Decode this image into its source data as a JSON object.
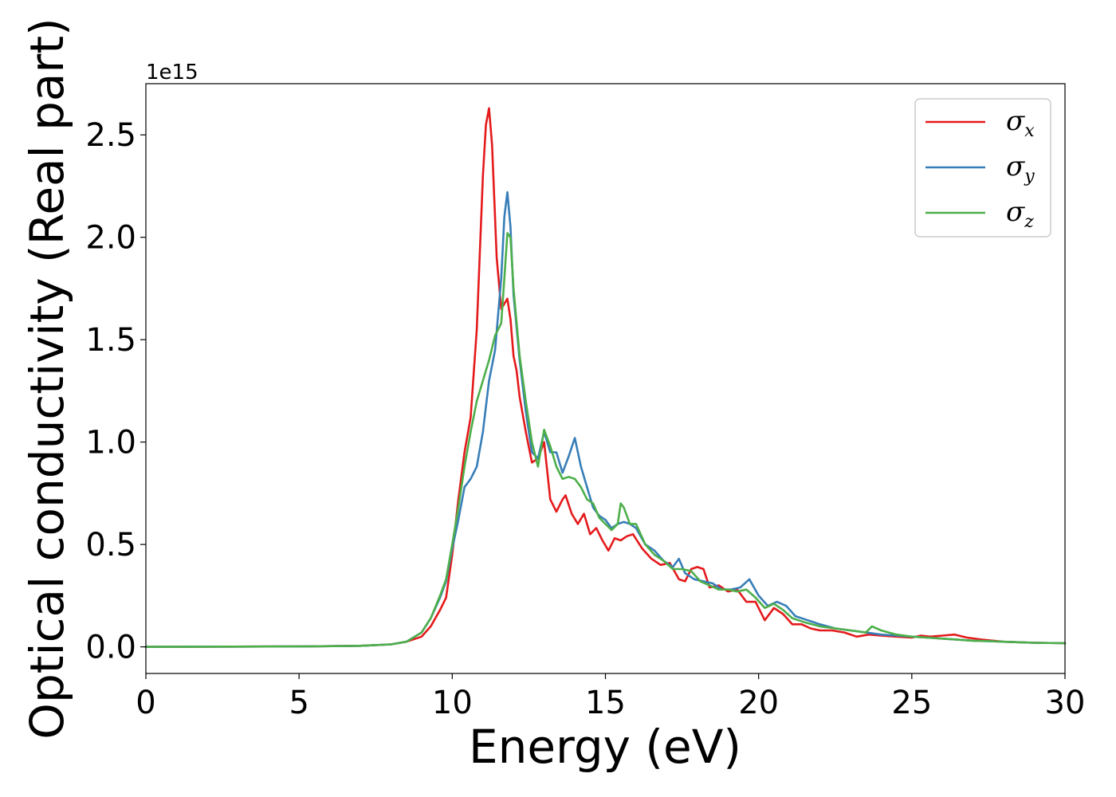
{
  "chart_data": {
    "type": "line",
    "title": "",
    "xlabel": "Energy (eV)",
    "ylabel": "Optical conductivity (Real part)",
    "y_offset_label": "1e15",
    "xlim": [
      0,
      30
    ],
    "ylim": [
      -0.13,
      2.75
    ],
    "xticks": [
      0,
      5,
      10,
      15,
      20,
      25,
      30
    ],
    "yticks": [
      0.0,
      0.5,
      1.0,
      1.5,
      2.0,
      2.5
    ],
    "ytick_labels": [
      "0.0",
      "0.5",
      "1.0",
      "1.5",
      "2.0",
      "2.5"
    ],
    "grid": false,
    "legend_position": "top-right",
    "series": [
      {
        "name": "σx",
        "legend_symbol": "σ",
        "legend_sub": "x",
        "color": "#e41a1c",
        "x": [
          0,
          5,
          7,
          8,
          8.5,
          9,
          9.3,
          9.6,
          9.8,
          10.0,
          10.2,
          10.4,
          10.6,
          10.8,
          11.0,
          11.1,
          11.2,
          11.3,
          11.45,
          11.6,
          11.8,
          11.9,
          12.0,
          12.1,
          12.2,
          12.4,
          12.6,
          12.8,
          13.0,
          13.2,
          13.4,
          13.6,
          13.7,
          13.9,
          14.1,
          14.3,
          14.5,
          14.7,
          14.9,
          15.1,
          15.3,
          15.5,
          15.7,
          15.9,
          16.2,
          16.5,
          16.8,
          17.1,
          17.4,
          17.6,
          17.8,
          18.0,
          18.2,
          18.4,
          18.7,
          19.0,
          19.3,
          19.6,
          19.9,
          20.2,
          20.5,
          20.8,
          21.1,
          21.4,
          21.7,
          22.0,
          22.4,
          22.8,
          23.2,
          23.6,
          24.0,
          24.5,
          25.0,
          25.3,
          25.6,
          26.0,
          26.4,
          26.8,
          27.3,
          28.0,
          29.0,
          30.0
        ],
        "y": [
          0.0,
          0.002,
          0.005,
          0.012,
          0.025,
          0.05,
          0.1,
          0.18,
          0.24,
          0.45,
          0.72,
          0.95,
          1.12,
          1.55,
          2.3,
          2.55,
          2.63,
          2.45,
          1.9,
          1.65,
          1.7,
          1.6,
          1.42,
          1.35,
          1.22,
          1.05,
          0.9,
          0.92,
          1.0,
          0.72,
          0.66,
          0.72,
          0.74,
          0.65,
          0.6,
          0.65,
          0.55,
          0.58,
          0.52,
          0.47,
          0.53,
          0.52,
          0.54,
          0.55,
          0.48,
          0.43,
          0.4,
          0.41,
          0.33,
          0.32,
          0.38,
          0.39,
          0.38,
          0.29,
          0.3,
          0.27,
          0.28,
          0.22,
          0.22,
          0.13,
          0.19,
          0.16,
          0.11,
          0.11,
          0.09,
          0.08,
          0.08,
          0.07,
          0.05,
          0.06,
          0.055,
          0.05,
          0.045,
          0.055,
          0.05,
          0.055,
          0.06,
          0.045,
          0.035,
          0.025,
          0.02,
          0.018
        ]
      },
      {
        "name": "σy",
        "legend_symbol": "σ",
        "legend_sub": "y",
        "color": "#377eb8",
        "x": [
          0,
          5,
          7,
          8,
          8.5,
          9,
          9.3,
          9.6,
          9.8,
          10.0,
          10.2,
          10.4,
          10.6,
          10.8,
          11.0,
          11.2,
          11.4,
          11.6,
          11.7,
          11.8,
          11.9,
          12.0,
          12.2,
          12.4,
          12.6,
          12.8,
          13.0,
          13.2,
          13.4,
          13.6,
          13.8,
          14.0,
          14.2,
          14.4,
          14.6,
          14.8,
          15.0,
          15.2,
          15.4,
          15.6,
          15.8,
          16.0,
          16.3,
          16.6,
          16.9,
          17.2,
          17.4,
          17.6,
          17.9,
          18.2,
          18.5,
          18.8,
          19.1,
          19.4,
          19.7,
          20.0,
          20.3,
          20.6,
          20.9,
          21.2,
          21.6,
          22.0,
          22.5,
          23.0,
          23.5,
          24.0,
          24.5,
          25.0,
          25.5,
          26.0,
          26.5,
          27.0,
          27.5,
          28.0,
          29.0,
          30.0
        ],
        "y": [
          0.0,
          0.002,
          0.005,
          0.012,
          0.025,
          0.07,
          0.14,
          0.24,
          0.32,
          0.48,
          0.62,
          0.78,
          0.82,
          0.88,
          1.05,
          1.3,
          1.45,
          1.8,
          2.1,
          2.22,
          2.05,
          1.72,
          1.4,
          1.15,
          0.95,
          0.92,
          1.05,
          0.95,
          0.95,
          0.85,
          0.93,
          1.02,
          0.88,
          0.78,
          0.68,
          0.64,
          0.62,
          0.58,
          0.6,
          0.61,
          0.6,
          0.58,
          0.5,
          0.47,
          0.42,
          0.39,
          0.43,
          0.36,
          0.33,
          0.32,
          0.31,
          0.28,
          0.28,
          0.29,
          0.33,
          0.25,
          0.2,
          0.22,
          0.2,
          0.15,
          0.13,
          0.11,
          0.09,
          0.08,
          0.07,
          0.06,
          0.055,
          0.05,
          0.045,
          0.04,
          0.035,
          0.03,
          0.028,
          0.025,
          0.02,
          0.018
        ]
      },
      {
        "name": "σz",
        "legend_symbol": "σ",
        "legend_sub": "z",
        "color": "#4daf4a",
        "x": [
          0,
          5,
          7,
          8,
          8.5,
          9,
          9.3,
          9.6,
          9.8,
          10.0,
          10.2,
          10.4,
          10.6,
          10.8,
          11.0,
          11.2,
          11.4,
          11.6,
          11.7,
          11.8,
          11.9,
          12.0,
          12.2,
          12.4,
          12.6,
          12.8,
          13.0,
          13.2,
          13.4,
          13.6,
          13.8,
          14.0,
          14.2,
          14.4,
          14.6,
          14.8,
          15.0,
          15.2,
          15.4,
          15.5,
          15.6,
          15.8,
          16.0,
          16.3,
          16.6,
          16.9,
          17.2,
          17.5,
          17.8,
          18.1,
          18.4,
          18.7,
          19.0,
          19.3,
          19.6,
          19.9,
          20.2,
          20.5,
          20.8,
          21.1,
          21.5,
          22.0,
          22.5,
          23.0,
          23.5,
          23.7,
          24.0,
          24.5,
          25.0,
          25.5,
          26.0,
          26.5,
          27.0,
          27.5,
          28.0,
          29.0,
          30.0
        ],
        "y": [
          0.0,
          0.002,
          0.005,
          0.012,
          0.025,
          0.07,
          0.14,
          0.25,
          0.33,
          0.5,
          0.68,
          0.88,
          1.05,
          1.2,
          1.3,
          1.4,
          1.52,
          1.58,
          1.8,
          2.02,
          2.0,
          1.75,
          1.42,
          1.2,
          1.0,
          0.88,
          1.06,
          0.98,
          0.88,
          0.82,
          0.83,
          0.82,
          0.78,
          0.72,
          0.7,
          0.63,
          0.6,
          0.57,
          0.6,
          0.7,
          0.68,
          0.6,
          0.6,
          0.5,
          0.45,
          0.42,
          0.38,
          0.38,
          0.37,
          0.32,
          0.3,
          0.28,
          0.28,
          0.27,
          0.28,
          0.24,
          0.19,
          0.21,
          0.18,
          0.14,
          0.12,
          0.1,
          0.09,
          0.08,
          0.07,
          0.1,
          0.08,
          0.06,
          0.05,
          0.045,
          0.04,
          0.035,
          0.03,
          0.028,
          0.025,
          0.02,
          0.018
        ]
      }
    ]
  }
}
